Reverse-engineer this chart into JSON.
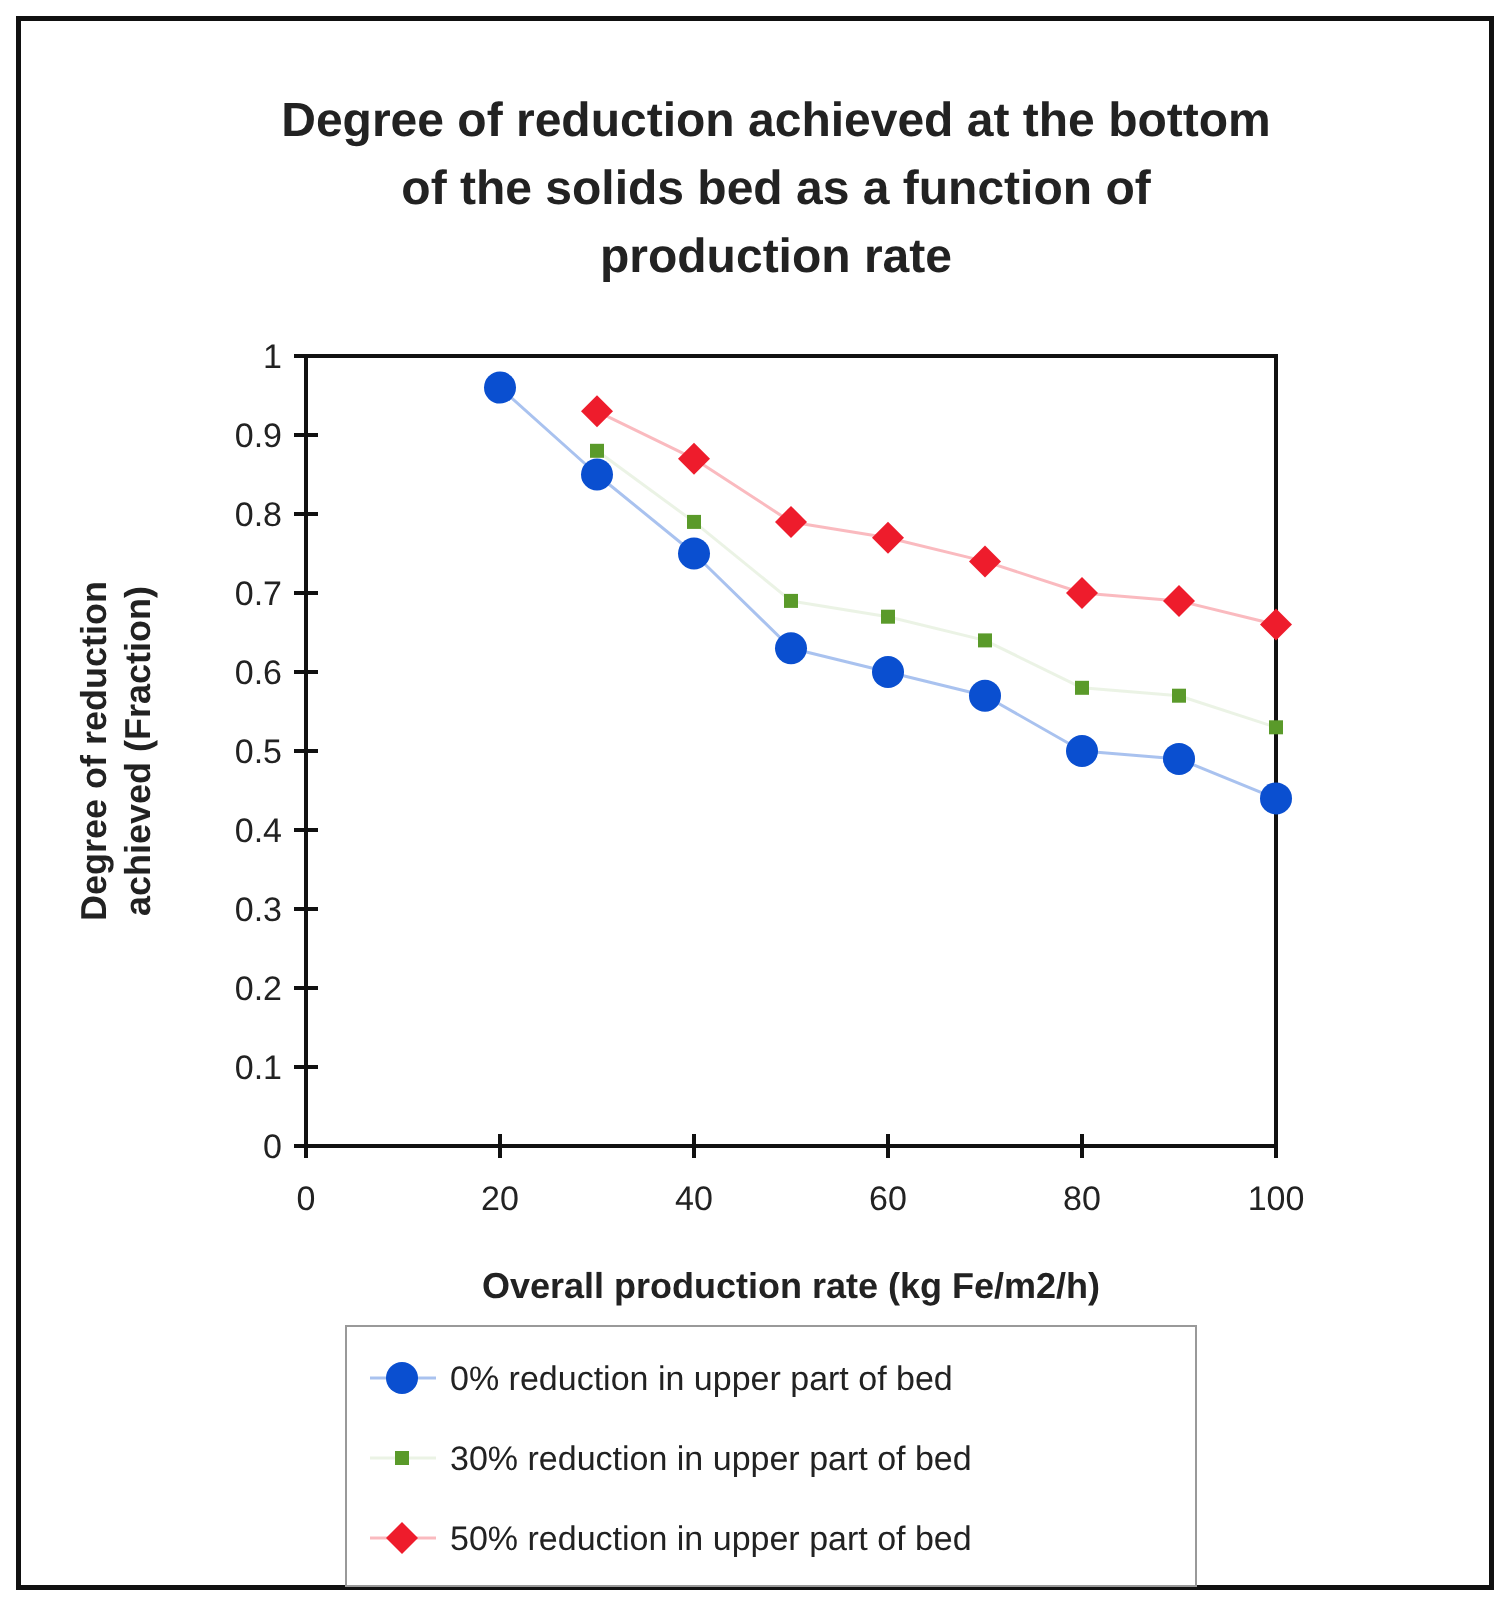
{
  "chart_data": {
    "type": "line",
    "title": "Degree of reduction achieved at the bottom of the solids bed as a function of production rate",
    "xlabel": "Overall production rate (kg Fe/m2/h)",
    "ylabel": "Degree of reduction achieved (Fraction)",
    "x": [
      20,
      30,
      40,
      50,
      60,
      70,
      80,
      90,
      100
    ],
    "xlim": [
      0,
      100
    ],
    "xticks": [
      0,
      20,
      40,
      60,
      80,
      100
    ],
    "ylim": [
      0,
      1
    ],
    "yticks": [
      0,
      0.1,
      0.2,
      0.3,
      0.4,
      0.5,
      0.6,
      0.7,
      0.8,
      0.9,
      1
    ],
    "grid": false,
    "legend": "bottom",
    "series": [
      {
        "name": "0% reduction in upper part of bed",
        "color": "#0a4fd0",
        "marker": "circle",
        "values": [
          0.96,
          0.85,
          0.75,
          0.63,
          0.6,
          0.57,
          0.5,
          0.49,
          0.44
        ]
      },
      {
        "name": "30% reduction in upper part of bed",
        "color": "#5a9a2a",
        "marker": "square",
        "values": [
          null,
          0.88,
          0.79,
          0.69,
          0.67,
          0.64,
          0.58,
          0.57,
          0.53
        ]
      },
      {
        "name": "50% reduction in upper part of bed",
        "color": "#ee1c2c",
        "marker": "diamond",
        "values": [
          null,
          0.93,
          0.87,
          0.79,
          0.77,
          0.74,
          0.7,
          0.69,
          0.66
        ]
      }
    ]
  }
}
